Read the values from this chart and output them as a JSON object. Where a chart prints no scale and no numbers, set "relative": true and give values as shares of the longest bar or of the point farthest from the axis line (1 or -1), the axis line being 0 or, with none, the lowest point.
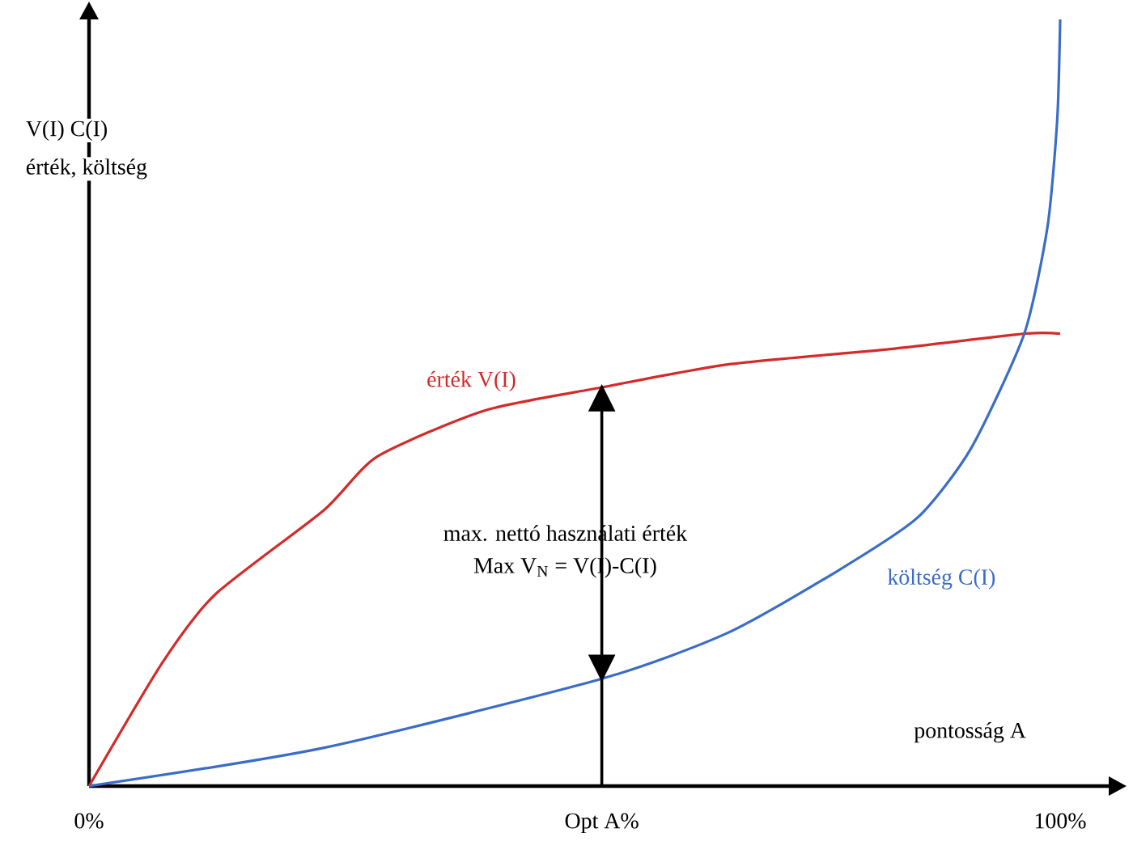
{
  "chart_data": {
    "type": "line",
    "relative": true,
    "xlabel": "pontosság A",
    "ylabel": "V(I)  C(I)",
    "xlim": [
      0,
      105
    ],
    "xticks": [
      {
        "value": 0,
        "label": "0%"
      },
      {
        "value": 52.8,
        "label": "Opt A%"
      },
      {
        "value": 100,
        "label": "100%"
      }
    ],
    "series": [
      {
        "name": "érték V(I)",
        "color": "#d42a2a",
        "x": [
          0,
          7.5,
          13,
          24.2,
          29.7,
          40.8,
          52.8,
          65.8,
          82.5,
          96.3,
          100
        ],
        "values": [
          0,
          0.16,
          0.25,
          0.36,
          0.43,
          0.49,
          0.52,
          0.55,
          0.57,
          0.59,
          0.59
        ]
      },
      {
        "name": "költség C(I)",
        "color": "#3a6cc8",
        "x": [
          0,
          24.2,
          52.8,
          65.8,
          77,
          85.3,
          90.8,
          96.3,
          98.7,
          99.7,
          100
        ],
        "values": [
          0,
          0.05,
          0.14,
          0.2,
          0.28,
          0.35,
          0.44,
          0.59,
          0.73,
          0.87,
          1
        ]
      }
    ],
    "annotations": [
      "érték, költség",
      "max. nettó használati érték",
      "Max V$_{N}$ = V(I)-C(I)"
    ],
    "grid": false,
    "marker": "none",
    "line_style": "solid"
  }
}
